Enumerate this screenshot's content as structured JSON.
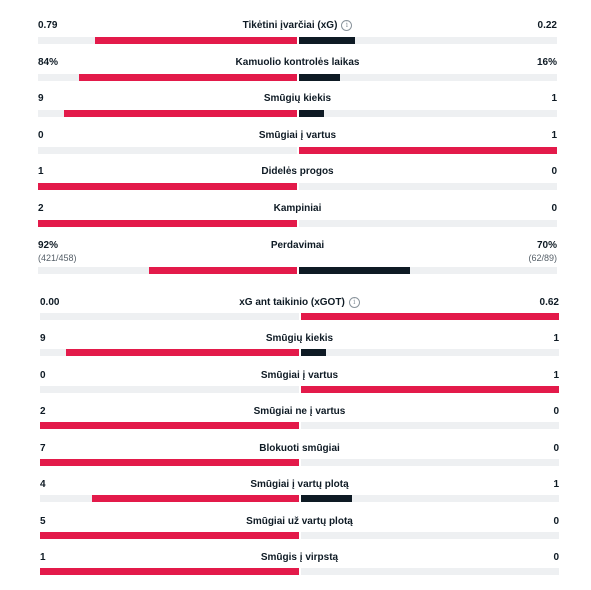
{
  "colors": {
    "home": "#e31a4a",
    "away": "#0e1a24",
    "track": "#eef0f2"
  },
  "group1": [
    {
      "label": "Tikėtini įvarčiai (xG)",
      "home": "0.79",
      "away": "0.22",
      "info": "i",
      "home_share": 0.78,
      "away_share": 0.22
    },
    {
      "label": "Kamuolio kontrolės laikas",
      "home": "84%",
      "away": "16%",
      "home_share": 0.84,
      "away_share": 0.16
    },
    {
      "label": "Smūgių kiekis",
      "home": "9",
      "away": "1",
      "home_share": 0.9,
      "away_share": 0.1
    },
    {
      "label": "Smūgiai į vartus",
      "home": "0",
      "away": "1",
      "home_share": 0.0,
      "away_share": 1.0
    },
    {
      "label": "Didelės progos",
      "home": "1",
      "away": "0",
      "home_share": 1.0,
      "away_share": 0.0
    },
    {
      "label": "Kampiniai",
      "home": "2",
      "away": "0",
      "home_share": 1.0,
      "away_share": 0.0
    },
    {
      "label": "Perdavimai",
      "home": "92%",
      "away": "70%",
      "home_sub": "(421/458)",
      "away_sub": "(62/89)",
      "home_share": 0.57,
      "away_share": 0.43
    }
  ],
  "group2": [
    {
      "label": "xG ant taikinio (xGOT)",
      "home": "0.00",
      "away": "0.62",
      "info": "i",
      "home_share": 0.0,
      "away_share": 1.0
    },
    {
      "label": "Smūgių kiekis",
      "home": "9",
      "away": "1",
      "home_share": 0.9,
      "away_share": 0.1
    },
    {
      "label": "Smūgiai į vartus",
      "home": "0",
      "away": "1",
      "home_share": 0.0,
      "away_share": 1.0
    },
    {
      "label": "Smūgiai ne į vartus",
      "home": "2",
      "away": "0",
      "home_share": 1.0,
      "away_share": 0.0
    },
    {
      "label": "Blokuoti smūgiai",
      "home": "7",
      "away": "0",
      "home_share": 1.0,
      "away_share": 0.0
    },
    {
      "label": "Smūgiai į vartų plotą",
      "home": "4",
      "away": "1",
      "home_share": 0.8,
      "away_share": 0.2
    },
    {
      "label": "Smūgiai už vartų plotą",
      "home": "5",
      "away": "0",
      "home_share": 1.0,
      "away_share": 0.0
    },
    {
      "label": "Smūgis į virpstą",
      "home": "1",
      "away": "0",
      "home_share": 1.0,
      "away_share": 0.0
    }
  ]
}
